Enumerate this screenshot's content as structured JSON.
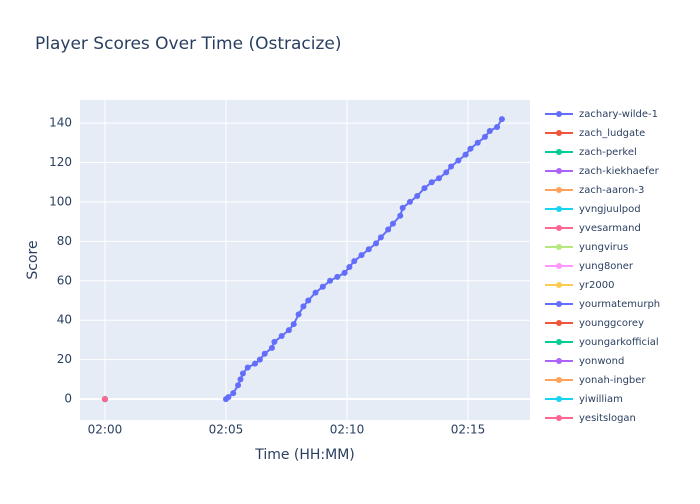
{
  "chart_data": {
    "type": "line",
    "title": "Player Scores Over Time (Ostracize)",
    "x_label": "Time (HH:MM)",
    "y_label": "Score",
    "xlim": [
      -1.03,
      17.56
    ],
    "ylim": [
      -10.6,
      151.7
    ],
    "xticks": [
      {
        "value": 0,
        "label": "02:00"
      },
      {
        "value": 5,
        "label": "02:05"
      },
      {
        "value": 10,
        "label": "02:10"
      },
      {
        "value": 15,
        "label": "02:15"
      }
    ],
    "yticks": [
      0,
      20,
      40,
      60,
      80,
      100,
      120,
      140
    ],
    "grid": true,
    "legend": "right",
    "series": [
      {
        "name": "zachary-wilde-1",
        "color": "#636efa",
        "x": [
          5.0,
          5.1,
          5.3,
          5.5,
          5.6,
          5.7,
          5.9,
          6.2,
          6.4,
          6.6,
          6.9,
          7.0,
          7.3,
          7.6,
          7.8,
          8.0,
          8.2,
          8.4,
          8.7,
          9.0,
          9.3,
          9.6,
          9.9,
          10.1,
          10.3,
          10.6,
          10.9,
          11.2,
          11.4,
          11.7,
          11.9,
          12.2,
          12.3,
          12.6,
          12.9,
          13.2,
          13.5,
          13.8,
          14.1,
          14.3,
          14.6,
          14.9,
          15.1,
          15.4,
          15.7,
          15.9,
          16.2,
          16.4
        ],
        "values": [
          0,
          1,
          3,
          7,
          10,
          13,
          16,
          18,
          20,
          23,
          26,
          29,
          32,
          35,
          38,
          43,
          47,
          50,
          54,
          57,
          60,
          62,
          64,
          67,
          70,
          73,
          76,
          79,
          82,
          86,
          89,
          93,
          97,
          100,
          103,
          107,
          110,
          112,
          115,
          118,
          121,
          124,
          127,
          130,
          133,
          136,
          138,
          142
        ]
      },
      {
        "name": "zach_ludgate",
        "color": "#EF553B",
        "x": [
          0
        ],
        "values": [
          0
        ]
      },
      {
        "name": "zach-perkel",
        "color": "#00cc96",
        "x": [
          0
        ],
        "values": [
          0
        ]
      },
      {
        "name": "zach-kiekhaefer",
        "color": "#ab63fa",
        "x": [
          0
        ],
        "values": [
          0
        ]
      },
      {
        "name": "zach-aaron-3",
        "color": "#FFA15A",
        "x": [
          0
        ],
        "values": [
          0
        ]
      },
      {
        "name": "yvngjuulpod",
        "color": "#19d3f3",
        "x": [
          0
        ],
        "values": [
          0
        ]
      },
      {
        "name": "yvesarmand",
        "color": "#FF6692",
        "x": [
          0
        ],
        "values": [
          0
        ]
      },
      {
        "name": "yungvirus",
        "color": "#B6E880",
        "x": [
          0
        ],
        "values": [
          0
        ]
      },
      {
        "name": "yung8oner",
        "color": "#FF97FF",
        "x": [
          0
        ],
        "values": [
          0
        ]
      },
      {
        "name": "yr2000",
        "color": "#FECB52",
        "x": [
          0
        ],
        "values": [
          0
        ]
      },
      {
        "name": "yourmatemurph",
        "color": "#636efa",
        "x": [
          0
        ],
        "values": [
          0
        ]
      },
      {
        "name": "younggcorey",
        "color": "#EF553B",
        "x": [
          0
        ],
        "values": [
          0
        ]
      },
      {
        "name": "youngarkofficial",
        "color": "#00cc96",
        "x": [
          0
        ],
        "values": [
          0
        ]
      },
      {
        "name": "yonwond",
        "color": "#ab63fa",
        "x": [
          0
        ],
        "values": [
          0
        ]
      },
      {
        "name": "yonah-ingber",
        "color": "#FFA15A",
        "x": [
          0
        ],
        "values": [
          0
        ]
      },
      {
        "name": "yiwilliam",
        "color": "#19d3f3",
        "x": [
          0
        ],
        "values": [
          0
        ]
      },
      {
        "name": "yesitslogan",
        "color": "#FF6692",
        "x": [
          0
        ],
        "values": [
          0
        ]
      }
    ]
  }
}
